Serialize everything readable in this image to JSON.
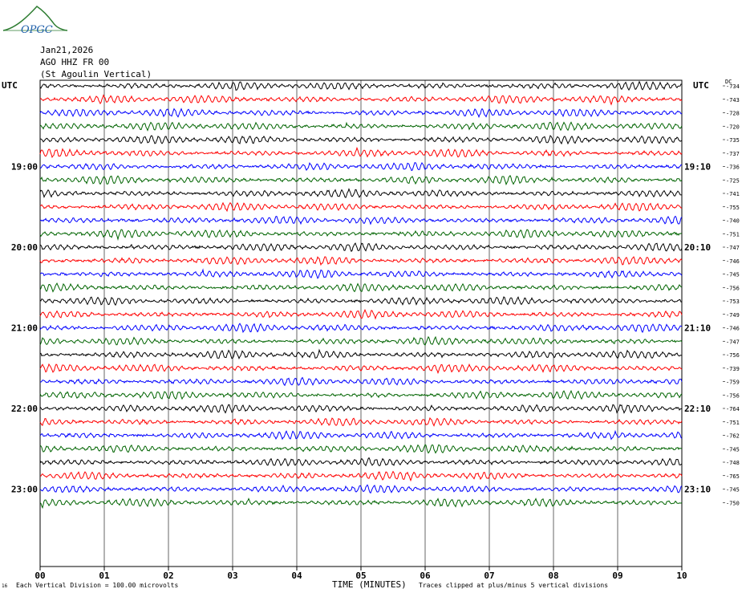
{
  "logo_text": "OPGC",
  "header": {
    "date": "Jan21,2026",
    "station": "AGO HHZ FR 00",
    "site": "(St Agoulin Vertical)"
  },
  "left_axis_label": "UTC",
  "right_axis_label": "UTC",
  "dc_label": "DC",
  "footer": {
    "division": "Each Vertical Division =  100.00 microvolts",
    "xlabel": "TIME (MINUTES)",
    "clip_note": "Traces clipped at plus/minus 5 vertical divisions",
    "corner_mark": "16"
  },
  "colors": {
    "trace_cycle": [
      "#000000",
      "#ff0000",
      "#0000ff",
      "#006400"
    ],
    "grid": "#000000"
  },
  "chart_data": {
    "type": "line",
    "title": "",
    "xlabel": "TIME (MINUTES)",
    "ylabel": "",
    "xlim": [
      0,
      10
    ],
    "x_ticks": [
      "00",
      "01",
      "02",
      "03",
      "04",
      "05",
      "06",
      "07",
      "08",
      "09",
      "10"
    ],
    "rows_per_hour": 6,
    "left_time_labels": [
      {
        "row": 6,
        "label": "19:00"
      },
      {
        "row": 12,
        "label": "20:00"
      },
      {
        "row": 18,
        "label": "21:00"
      },
      {
        "row": 24,
        "label": "22:00"
      },
      {
        "row": 30,
        "label": "23:00"
      }
    ],
    "right_time_labels": [
      {
        "row": 6,
        "label": "19:10"
      },
      {
        "row": 12,
        "label": "20:10"
      },
      {
        "row": 18,
        "label": "21:10"
      },
      {
        "row": 24,
        "label": "22:10"
      },
      {
        "row": 30,
        "label": "23:10"
      }
    ],
    "dc_offsets": [
      -734,
      -743,
      -728,
      -720,
      -735,
      -737,
      -736,
      -725,
      -741,
      -755,
      -740,
      -751,
      -747,
      -746,
      -745,
      -756,
      -753,
      -749,
      -746,
      -747,
      -756,
      -739,
      -759,
      -756,
      -764,
      -751,
      -762,
      -745,
      -748,
      -765,
      -745,
      -750
    ],
    "note": "Traces clipped at plus/minus 5 vertical divisions",
    "division": "Each Vertical Division =  100.00 microvolts"
  }
}
